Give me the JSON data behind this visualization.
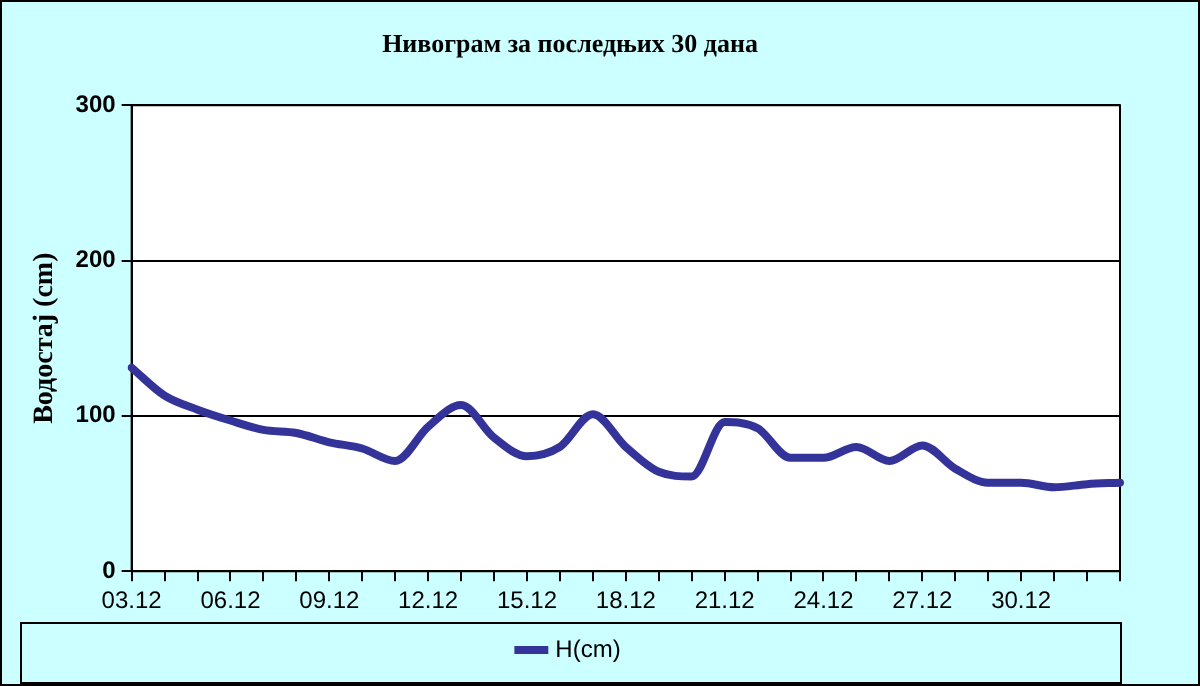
{
  "chart_data": {
    "type": "line",
    "title": "Нивограм за последњих 30 дана",
    "ylabel": "Водостај (cm)",
    "categories": [
      "03.12",
      null,
      null,
      "06.12",
      null,
      null,
      "09.12",
      null,
      null,
      "12.12",
      null,
      null,
      "15.12",
      null,
      null,
      "18.12",
      null,
      null,
      "21.12",
      null,
      null,
      "24.12",
      null,
      null,
      "27.12",
      null,
      null,
      "30.12",
      null,
      null,
      null
    ],
    "series": [
      {
        "name": "H(cm)",
        "color": "#333399",
        "values": [
          131,
          113,
          104,
          97,
          91,
          89,
          83,
          79,
          71,
          93,
          107,
          86,
          74,
          80,
          101,
          80,
          64,
          61,
          96,
          92,
          73,
          73,
          80,
          71,
          81,
          66,
          57,
          57,
          54,
          56,
          57
        ]
      }
    ],
    "ylim": [
      0,
      300
    ],
    "yticks": [
      0,
      100,
      200,
      300
    ],
    "grid": "y",
    "legend": "bottom",
    "marker": "none",
    "line_style": "solid"
  }
}
